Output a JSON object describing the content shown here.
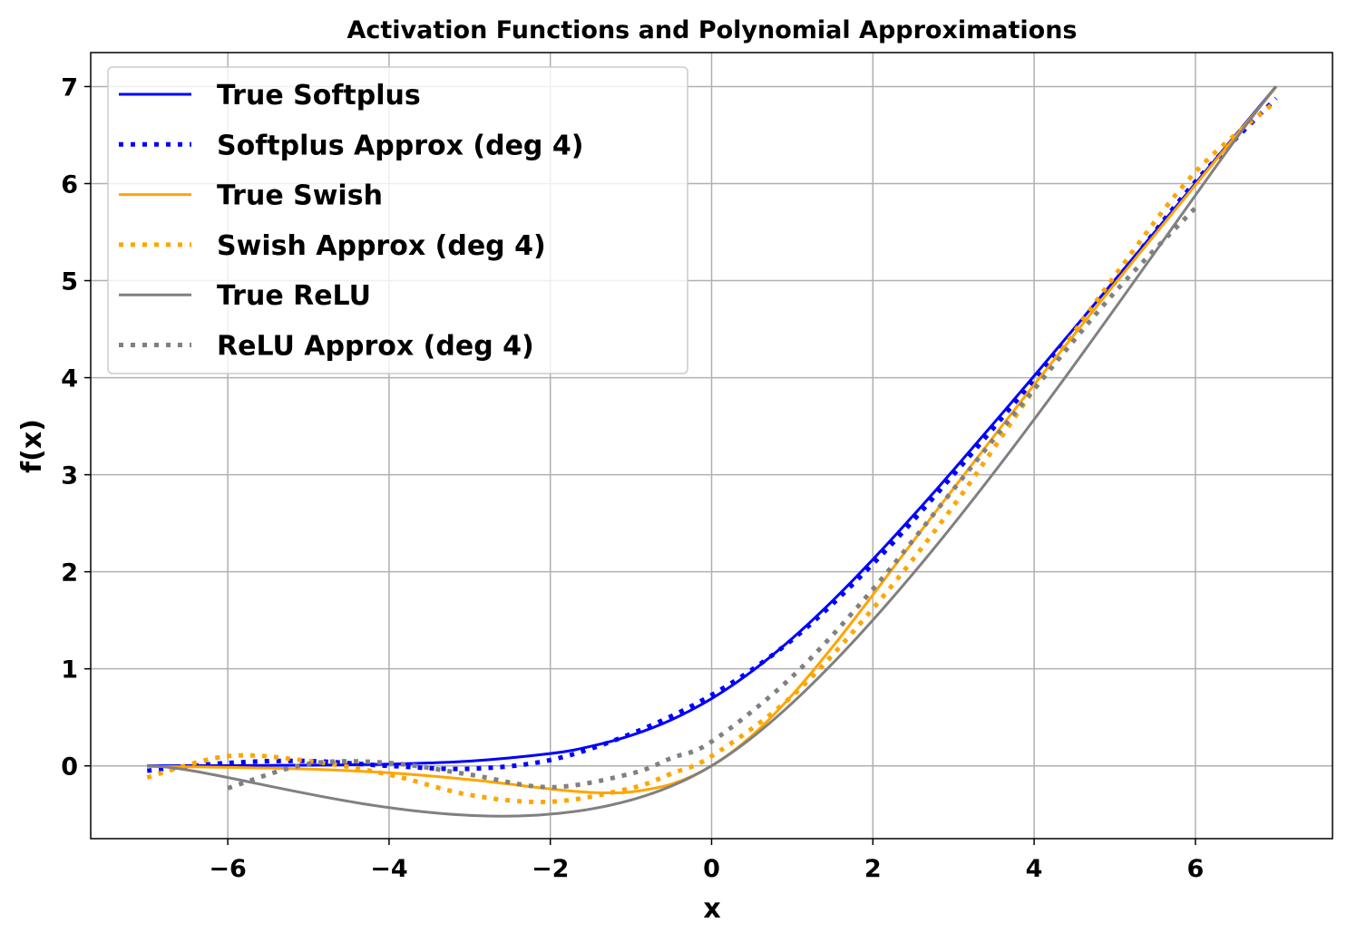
{
  "chart_data": {
    "type": "line",
    "title": "Activation Functions and Polynomial Approximations",
    "xlabel": "x",
    "ylabel": "f(x)",
    "xlim": [
      -7.7,
      7.7
    ],
    "ylim": [
      -0.75,
      7.35
    ],
    "xticks": [
      -6,
      -4,
      -2,
      0,
      2,
      4,
      6
    ],
    "xtick_labels": [
      "−6",
      "−4",
      "−2",
      "0",
      "2",
      "4",
      "6"
    ],
    "yticks": [
      0,
      1,
      2,
      3,
      4,
      5,
      6,
      7
    ],
    "ytick_labels": [
      "0",
      "1",
      "2",
      "3",
      "4",
      "5",
      "6",
      "7"
    ],
    "grid": true,
    "legend_position": "top-left",
    "series": [
      {
        "name": "True Softplus",
        "color": "#0000ff",
        "style": "solid",
        "x": [
          -7,
          -6,
          -5,
          -4,
          -3,
          -2,
          -1.5,
          -1,
          -0.5,
          0,
          0.5,
          1,
          1.5,
          2,
          2.5,
          3,
          4,
          5,
          6,
          7
        ],
        "y": [
          0.001,
          0.0025,
          0.0067,
          0.018,
          0.049,
          0.127,
          0.201,
          0.313,
          0.474,
          0.693,
          0.974,
          1.313,
          1.701,
          2.127,
          2.579,
          3.049,
          4.018,
          5.007,
          6.002,
          7.001
        ]
      },
      {
        "name": "Softplus Approx (deg 4)",
        "color": "#0000ff",
        "style": "dotted",
        "x": [
          -7,
          -6,
          -5,
          -4,
          -3,
          -2,
          -1,
          0,
          1,
          2,
          3,
          4,
          5,
          6,
          7
        ],
        "y": [
          -0.05,
          0.03,
          0.05,
          0.0,
          -0.03,
          0.06,
          0.33,
          0.73,
          1.3,
          2.08,
          3.0,
          3.98,
          4.98,
          6.02,
          6.88
        ]
      },
      {
        "name": "True Swish",
        "color": "#ffa500",
        "style": "solid",
        "x": [
          -7,
          -6,
          -5,
          -4,
          -3,
          -2,
          -1.5,
          -1.25,
          -1,
          -0.5,
          0,
          0.5,
          1,
          1.5,
          2,
          2.5,
          3,
          4,
          5,
          6,
          7
        ],
        "y": [
          -0.006,
          -0.015,
          -0.033,
          -0.072,
          -0.142,
          -0.238,
          -0.274,
          -0.278,
          -0.269,
          -0.189,
          0,
          0.311,
          0.731,
          1.226,
          1.762,
          2.315,
          2.858,
          3.928,
          4.967,
          5.985,
          6.994
        ]
      },
      {
        "name": "Swish Approx (deg 4)",
        "color": "#ffa500",
        "style": "dotted",
        "x": [
          -7,
          -6,
          -5,
          -4,
          -3,
          -2,
          -1,
          -0.5,
          0,
          1,
          2,
          3,
          4,
          5,
          6,
          7
        ],
        "y": [
          -0.12,
          0.1,
          0.05,
          -0.09,
          -0.3,
          -0.37,
          -0.23,
          -0.08,
          0.1,
          0.72,
          1.62,
          2.68,
          3.88,
          5.05,
          6.12,
          6.85
        ]
      },
      {
        "name": "True ReLU",
        "color": "#808080",
        "style": "solid",
        "x": [
          -7,
          0,
          7
        ],
        "y": [
          0,
          0,
          7
        ]
      },
      {
        "name": "ReLU Approx (deg 4)",
        "color": "#808080",
        "style": "dotted",
        "x": [
          -6,
          -5,
          -4,
          -3,
          -2,
          -1,
          -0.5,
          0,
          1,
          2,
          3,
          4,
          5,
          6
        ],
        "y": [
          -0.23,
          0.02,
          0.03,
          -0.09,
          -0.22,
          -0.08,
          0.08,
          0.25,
          0.92,
          1.82,
          2.85,
          3.88,
          4.88,
          5.75
        ]
      }
    ]
  }
}
